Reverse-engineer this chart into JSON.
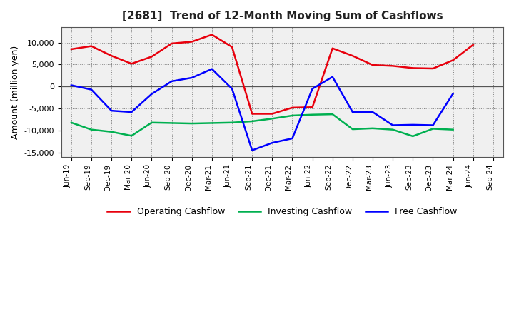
{
  "title": "[2681]  Trend of 12-Month Moving Sum of Cashflows",
  "ylabel": "Amount (million yen)",
  "x_labels": [
    "Jun-19",
    "Sep-19",
    "Dec-19",
    "Mar-20",
    "Jun-20",
    "Sep-20",
    "Dec-20",
    "Mar-21",
    "Jun-21",
    "Sep-21",
    "Dec-21",
    "Mar-22",
    "Jun-22",
    "Sep-22",
    "Dec-22",
    "Mar-23",
    "Jun-23",
    "Sep-23",
    "Dec-23",
    "Mar-24",
    "Jun-24",
    "Sep-24"
  ],
  "operating": [
    8500,
    9200,
    7000,
    5200,
    6800,
    9800,
    10200,
    11800,
    9000,
    -6200,
    -6200,
    -4800,
    -4700,
    8700,
    7000,
    4900,
    4700,
    4200,
    4100,
    6000,
    9500,
    null
  ],
  "investing": [
    -8200,
    -9800,
    -10300,
    -11200,
    -8200,
    -8300,
    -8400,
    -8300,
    -8200,
    -7900,
    -7300,
    -6600,
    -6400,
    -6300,
    -9700,
    -9500,
    -9800,
    -11300,
    -9600,
    -9800,
    null,
    null
  ],
  "free": [
    300,
    -700,
    -5500,
    -5800,
    -1700,
    1200,
    2000,
    4000,
    -500,
    -14500,
    -12800,
    -11800,
    -500,
    2200,
    -5800,
    -5800,
    -8800,
    -8700,
    -8800,
    -1600,
    null,
    null
  ],
  "ylim": [
    -16000,
    13500
  ],
  "yticks": [
    -15000,
    -10000,
    -5000,
    0,
    5000,
    10000
  ],
  "colors": {
    "operating": "#e8000d",
    "investing": "#00b050",
    "free": "#0000ff"
  },
  "legend": [
    "Operating Cashflow",
    "Investing Cashflow",
    "Free Cashflow"
  ],
  "bg_color": "#f0f0f0",
  "grid_color": "#808080"
}
